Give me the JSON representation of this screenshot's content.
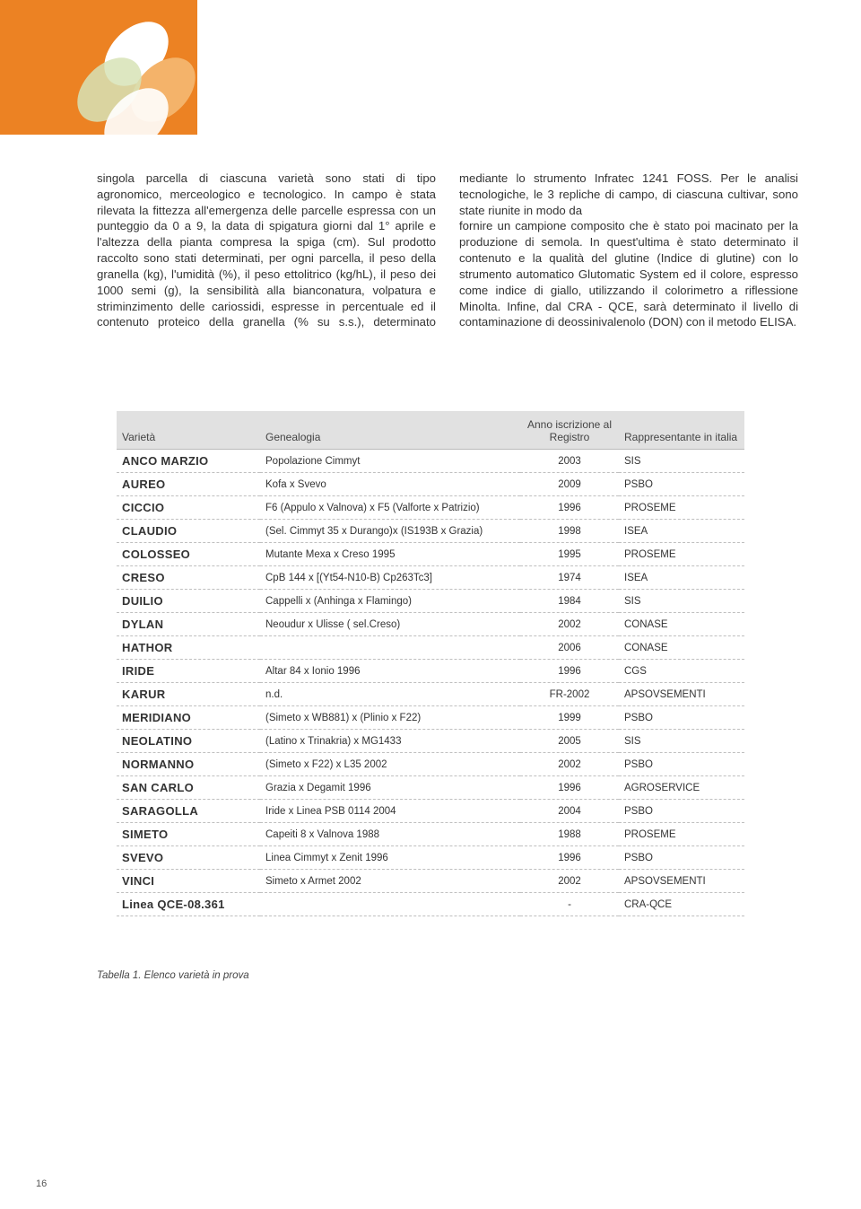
{
  "paragraphs": {
    "left": "singola parcella di ciascuna varietà sono stati di tipo agronomico, merceologico e tecnologico. In campo è stata rilevata la fittezza all'emergenza delle parcelle espressa con un punteggio da 0 a 9, la data di spigatura giorni dal 1° aprile e l'altezza della pianta compresa la spiga (cm). Sul prodotto raccolto sono stati determinati, per ogni parcella, il peso della granella (kg), l'umidità (%), il peso ettolitrico (kg/hL), il peso dei 1000 semi (g), la sensibilità alla bianconatura, volpatura e striminzimento delle cariossidi, espresse in percentuale ed il contenuto proteico della granella (% su s.s.), determinato mediante lo strumento Infratec 1241 FOSS. Per le analisi tecnologiche, le 3 repliche di campo, di ciascuna cultivar, sono state riunite in modo da",
    "right": "fornire un campione composito che è stato poi macinato per la produzione di semola. In quest'ultima è stato determinato il contenuto e la qualità del glutine (Indice di glutine) con lo strumento automatico Glutomatic System ed il colore, espresso come indice di giallo, utilizzando il colorimetro a riflessione Minolta. Infine, dal CRA - QCE, sarà determinato il livello di contaminazione di deossinivalenolo (DON) con il metodo ELISA."
  },
  "table": {
    "headers": {
      "variety": "Varietà",
      "genealogy": "Genealogia",
      "year": "Anno iscrizione al Registro",
      "rep": "Rappresentante in italia"
    },
    "rows": [
      {
        "v": "ANCO MARZIO",
        "g": "Popolazione Cimmyt",
        "y": "2003",
        "r": "SIS"
      },
      {
        "v": "AUREO",
        "g": "Kofa x Svevo",
        "y": "2009",
        "r": "PSBO"
      },
      {
        "v": "CICCIO",
        "g": "F6 (Appulo x Valnova) x F5 (Valforte x Patrizio)",
        "y": "1996",
        "r": "PROSEME"
      },
      {
        "v": "CLAUDIO",
        "g": "(Sel. Cimmyt 35 x Durango)x (IS193B x Grazia)",
        "y": "1998",
        "r": "ISEA"
      },
      {
        "v": "COLOSSEO",
        "g": "Mutante Mexa x Creso 1995",
        "y": "1995",
        "r": "PROSEME"
      },
      {
        "v": "CRESO",
        "g": "CpB 144 x [(Yt54-N10-B) Cp263Tc3]",
        "y": "1974",
        "r": "ISEA"
      },
      {
        "v": "DUILIO",
        "g": "Cappelli x (Anhinga x Flamingo)",
        "y": "1984",
        "r": "SIS"
      },
      {
        "v": "DYLAN",
        "g": "Neoudur x Ulisse ( sel.Creso)",
        "y": "2002",
        "r": "CONASE"
      },
      {
        "v": "HATHOR",
        "g": "",
        "y": "2006",
        "r": "CONASE"
      },
      {
        "v": "IRIDE",
        "g": "Altar 84 x Ionio 1996",
        "y": "1996",
        "r": "CGS"
      },
      {
        "v": "KARUR",
        "g": "n.d.",
        "y": "FR-2002",
        "r": "APSOVSEMENTI"
      },
      {
        "v": "MERIDIANO",
        "g": "(Simeto x WB881) x (Plinio x F22)",
        "y": "1999",
        "r": "PSBO"
      },
      {
        "v": "NEOLATINO",
        "g": "(Latino x Trinakria) x MG1433",
        "y": "2005",
        "r": "SIS"
      },
      {
        "v": "NORMANNO",
        "g": "(Simeto x F22) x L35 2002",
        "y": "2002",
        "r": "PSBO"
      },
      {
        "v": "SAN CARLO",
        "g": "Grazia x Degamit 1996",
        "y": "1996",
        "r": "AGROSERVICE"
      },
      {
        "v": "SARAGOLLA",
        "g": "Iride x Linea PSB 0114 2004",
        "y": "2004",
        "r": "PSBO"
      },
      {
        "v": "SIMETO",
        "g": "Capeiti 8 x Valnova 1988",
        "y": "1988",
        "r": "PROSEME"
      },
      {
        "v": "SVEVO",
        "g": "Linea Cimmyt x Zenit 1996",
        "y": "1996",
        "r": "PSBO"
      },
      {
        "v": "VINCI",
        "g": "Simeto x Armet 2002",
        "y": "2002",
        "r": "APSOVSEMENTI"
      },
      {
        "v": "Linea QCE-08.361",
        "g": "",
        "y": "-",
        "r": "CRA-QCE"
      }
    ]
  },
  "caption": "Tabella 1.  Elenco varietà in prova",
  "page_number": "16"
}
